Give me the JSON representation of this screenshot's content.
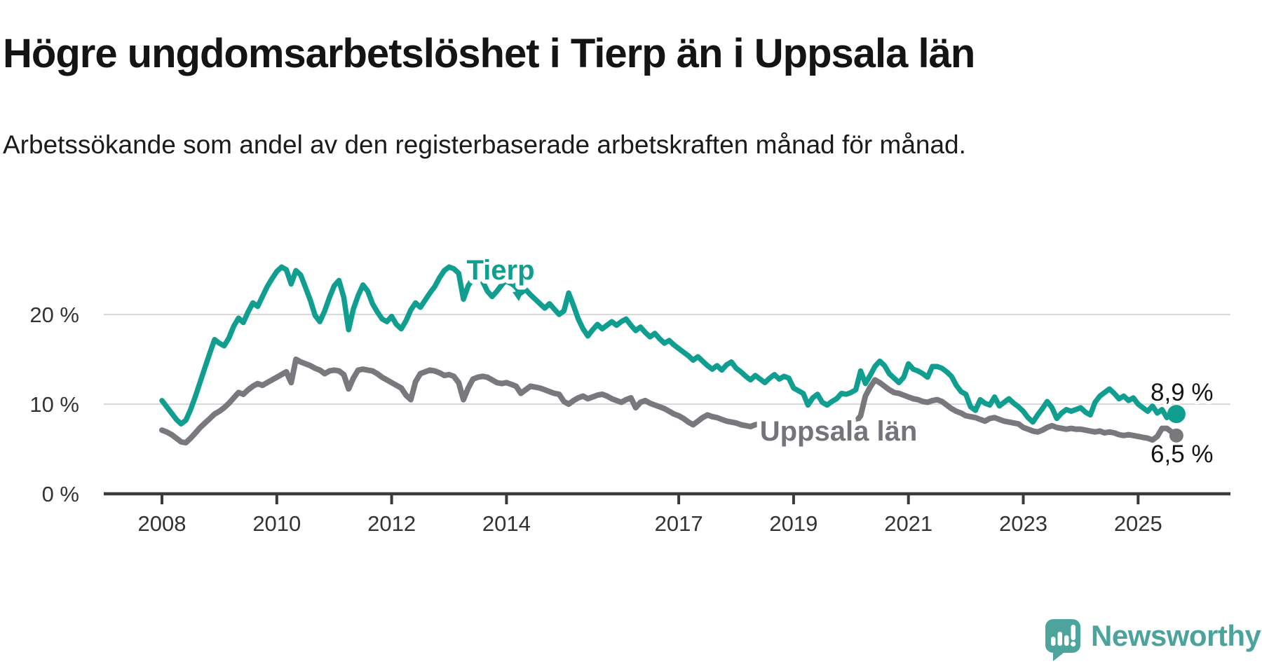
{
  "header": {
    "title": "Högre ungdomsarbetslöshet i Tierp än i Uppsala län",
    "subtitle": "Arbetssökande som andel av den registerbaserade arbetskraften månad för månad."
  },
  "annotations": {
    "tierp_label": "Tierp",
    "uppsala_label": "Uppsala län",
    "tierp_end_label": "8,9 %",
    "uppsala_end_label": "6,5 %"
  },
  "branding": {
    "logo_text": "Newsworthy",
    "logo_text_color": "#4ba39b",
    "logo_mark_color": "#4da49c"
  },
  "colors": {
    "tierp_line": "#0f9e90",
    "uppsala_line": "#7a787d",
    "gridline": "#d9d9d9",
    "axis": "#3a3a3a",
    "tick_text": "#333333",
    "end_label_text": "#141414"
  },
  "chart_data": {
    "type": "line",
    "title": "Högre ungdomsarbetslöshet i Tierp än i Uppsala län",
    "subtitle": "Arbetssökande som andel av den registerbaserade arbetskraften månad för månad.",
    "frequency": "monthly",
    "x_start": "2008-01",
    "x_end": "2025-09",
    "ylim": [
      0,
      27
    ],
    "grid": "horizontal",
    "y_ticks": [
      {
        "value": 0,
        "label": "0 %"
      },
      {
        "value": 10,
        "label": "10 %"
      },
      {
        "value": 20,
        "label": "20 %"
      }
    ],
    "x_ticks": [
      "2008",
      "2010",
      "2012",
      "2014",
      "2017",
      "2019",
      "2021",
      "2023",
      "2025"
    ],
    "series": [
      {
        "name": "Tierp",
        "color": "#0f9e90",
        "end_label": "8,9 %",
        "end_value": 8.9,
        "values": [
          10.4,
          9.7,
          9.0,
          8.3,
          7.8,
          8.2,
          9.4,
          10.9,
          12.5,
          14.1,
          15.7,
          17.2,
          16.8,
          16.5,
          17.4,
          18.7,
          19.6,
          19.1,
          20.3,
          21.3,
          20.9,
          22.0,
          23.1,
          24.0,
          24.8,
          25.3,
          25.0,
          23.4,
          24.9,
          24.4,
          23.0,
          21.6,
          19.9,
          19.2,
          20.4,
          21.9,
          23.2,
          23.8,
          21.9,
          18.3,
          20.6,
          22.1,
          23.3,
          22.6,
          21.2,
          20.3,
          19.5,
          19.2,
          19.8,
          18.9,
          18.4,
          19.3,
          20.5,
          21.3,
          20.8,
          21.6,
          22.4,
          23.1,
          24.1,
          24.9,
          25.3,
          25.1,
          24.6,
          21.7,
          23.2,
          24.0,
          24.4,
          23.7,
          22.6,
          22.0,
          22.6,
          23.3,
          23.9,
          24.5,
          23.4,
          22.4,
          22.8,
          22.2,
          21.7,
          21.2,
          20.7,
          21.2,
          20.6,
          20.0,
          20.4,
          22.4,
          21.0,
          19.5,
          18.4,
          17.6,
          18.3,
          18.9,
          18.4,
          18.8,
          19.2,
          18.8,
          19.2,
          19.5,
          18.8,
          18.2,
          18.6,
          18.0,
          17.5,
          17.9,
          17.3,
          16.8,
          17.1,
          16.6,
          16.2,
          15.8,
          15.4,
          14.9,
          15.3,
          14.8,
          14.3,
          13.9,
          14.3,
          13.8,
          14.4,
          14.7,
          14.0,
          13.6,
          13.1,
          12.7,
          13.2,
          12.8,
          12.4,
          12.9,
          13.3,
          12.8,
          13.1,
          12.9,
          11.8,
          11.5,
          11.2,
          9.9,
          10.7,
          11.1,
          10.2,
          9.9,
          10.3,
          10.6,
          11.2,
          11.1,
          11.3,
          11.6,
          13.7,
          12.3,
          13.2,
          14.2,
          14.8,
          14.3,
          13.4,
          12.9,
          12.4,
          13.0,
          14.5,
          13.9,
          13.7,
          13.4,
          13.0,
          14.2,
          14.2,
          14.0,
          13.6,
          13.1,
          12.1,
          11.4,
          11.1,
          9.7,
          9.3,
          10.5,
          10.1,
          9.9,
          10.8,
          9.8,
          10.2,
          10.6,
          10.1,
          9.7,
          9.2,
          8.5,
          8.0,
          8.8,
          9.5,
          10.3,
          9.6,
          8.4,
          9.0,
          9.4,
          9.2,
          9.4,
          9.6,
          9.1,
          8.8,
          10.2,
          10.9,
          11.3,
          11.7,
          11.2,
          10.6,
          10.9,
          10.4,
          10.7,
          10.0,
          9.6,
          9.2,
          9.8,
          9.0,
          9.4,
          8.5,
          9.2,
          8.9
        ]
      },
      {
        "name": "Uppsala län",
        "color": "#7a787d",
        "end_label": "6,5 %",
        "end_value": 6.5,
        "values": [
          7.1,
          6.9,
          6.6,
          6.2,
          5.8,
          5.7,
          6.2,
          6.8,
          7.4,
          7.9,
          8.4,
          8.9,
          9.2,
          9.6,
          10.1,
          10.7,
          11.3,
          11.1,
          11.6,
          12.0,
          12.3,
          12.1,
          12.4,
          12.7,
          13.0,
          13.3,
          13.6,
          12.4,
          15.0,
          14.7,
          14.5,
          14.3,
          14.0,
          13.8,
          13.4,
          13.7,
          13.8,
          13.7,
          13.3,
          11.7,
          12.9,
          13.8,
          13.9,
          13.8,
          13.7,
          13.4,
          13.0,
          12.7,
          12.4,
          12.1,
          11.8,
          11.0,
          10.5,
          12.5,
          13.4,
          13.6,
          13.8,
          13.7,
          13.5,
          13.2,
          13.3,
          13.1,
          12.4,
          10.5,
          11.8,
          12.8,
          13.0,
          13.1,
          13.0,
          12.7,
          12.4,
          12.3,
          12.4,
          12.2,
          12.0,
          11.2,
          11.6,
          12.0,
          11.9,
          11.8,
          11.6,
          11.4,
          11.2,
          11.1,
          10.3,
          10.0,
          10.4,
          10.7,
          10.9,
          10.6,
          10.8,
          11.0,
          11.1,
          10.9,
          10.6,
          10.4,
          10.2,
          10.5,
          10.7,
          9.6,
          10.2,
          10.4,
          10.1,
          9.9,
          9.7,
          9.5,
          9.2,
          8.9,
          8.7,
          8.4,
          8.0,
          7.7,
          8.1,
          8.5,
          8.8,
          8.6,
          8.5,
          8.3,
          8.1,
          8.0,
          7.9,
          7.7,
          7.6,
          7.5,
          7.7,
          7.8,
          7.7,
          7.6,
          7.5,
          7.4,
          7.3,
          7.4,
          7.5,
          7.4,
          7.3,
          7.2,
          7.3,
          7.4,
          7.3,
          7.2,
          7.3,
          7.4,
          7.5,
          7.6,
          7.8,
          8.0,
          8.7,
          10.9,
          11.9,
          12.7,
          12.4,
          12.0,
          11.6,
          11.3,
          11.2,
          11.0,
          10.8,
          10.6,
          10.5,
          10.3,
          10.2,
          10.4,
          10.5,
          10.3,
          9.9,
          9.5,
          9.2,
          9.0,
          8.7,
          8.6,
          8.5,
          8.3,
          8.1,
          8.4,
          8.5,
          8.3,
          8.1,
          8.0,
          7.9,
          7.8,
          7.4,
          7.2,
          7.0,
          6.9,
          7.1,
          7.4,
          7.6,
          7.4,
          7.3,
          7.2,
          7.3,
          7.2,
          7.2,
          7.1,
          7.0,
          6.9,
          7.0,
          6.8,
          6.9,
          6.8,
          6.6,
          6.5,
          6.6,
          6.5,
          6.4,
          6.3,
          6.2,
          6.0,
          6.4,
          7.3,
          7.3,
          6.9,
          6.5
        ]
      }
    ]
  }
}
